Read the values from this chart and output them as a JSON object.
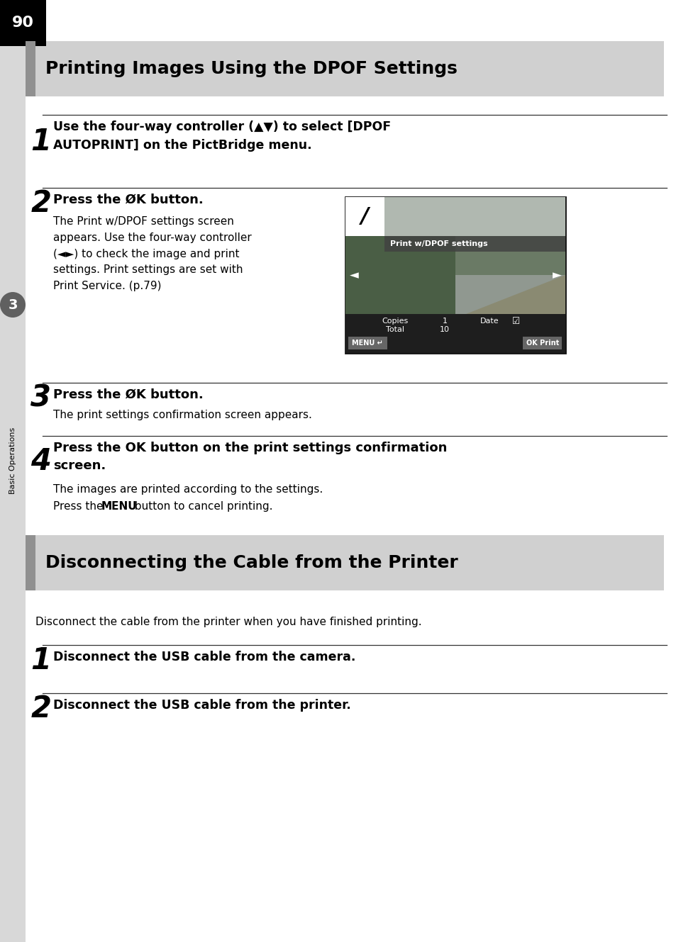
{
  "page_number": "90",
  "bg_color": "#ffffff",
  "sidebar_color": "#d8d8d8",
  "page_num_bg": "#000000",
  "page_num_color": "#ffffff",
  "section1_title": "Printing Images Using the DPOF Settings",
  "section2_title": "Disconnecting the Cable from the Printer",
  "section_header_bg": "#d0d0d0",
  "section_header_accent": "#909090",
  "step1_bold": "Use the four-way controller (▲▼) to select [DPOF\nAUTOPRINT] on the PictBridge menu.",
  "step2_body": "The Print w/DPOF settings screen\nappears. Use the four-way controller\n(◄►) to check the image and print\nsettings. Print settings are set with\nPrint Service. (p.79)",
  "step3_body": "The print settings confirmation screen appears.",
  "step4_bold": "Press the OK button on the print settings confirmation\nscreen.",
  "step4_body1": "The images are printed according to the settings.",
  "step4_body2": "Press the MENU button to cancel printing.",
  "section2_intro": "Disconnect the cable from the printer when you have finished printing.",
  "dc_step1_bold": "Disconnect the USB cable from the camera.",
  "dc_step2_bold": "Disconnect the USB cable from the printer.",
  "sidebar_label": "Basic Operations",
  "sidebar_chapter": "3"
}
